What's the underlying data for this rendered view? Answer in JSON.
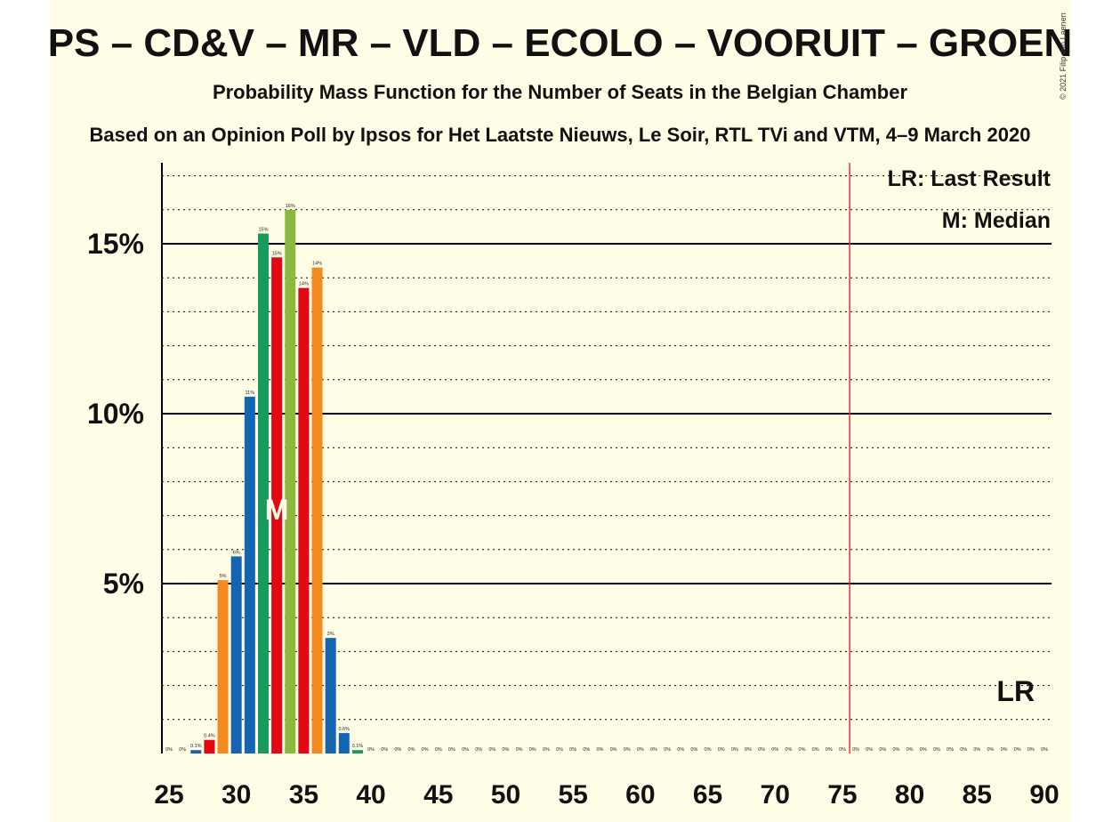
{
  "title": "PS – CD&V – MR – VLD – ECOLO – VOORUIT – GROEN",
  "subtitle": "Probability Mass Function for the Number of Seats in the Belgian Chamber",
  "source_line": "Based on an Opinion Poll by Ipsos for Het Laatste Nieuws, Le Soir, RTL TVi and VTM, 4–9 March 2020",
  "copyright": "© 2021 Filip van Laenen",
  "legend": {
    "lr": "LR: Last Result",
    "median": "M: Median"
  },
  "markers": {
    "lr_label": "LR",
    "median_label": "M"
  },
  "colors": {
    "background": "#fffde6",
    "threshold_line": "#e8333a",
    "grid": "#000000",
    "party_colors": [
      "#e30613",
      "#f28a1e",
      "#1464b4",
      "#179a5b",
      "#8cb83e"
    ]
  },
  "chart_data": {
    "type": "bar",
    "xlim": [
      25,
      90
    ],
    "ylim": [
      0,
      17.3
    ],
    "x_ticks": [
      25,
      30,
      35,
      40,
      45,
      50,
      55,
      60,
      65,
      70,
      75,
      80,
      85,
      90
    ],
    "y_ticks": [
      {
        "value": 5,
        "label": "5%"
      },
      {
        "value": 10,
        "label": "10%"
      },
      {
        "value": 15,
        "label": "15%"
      }
    ],
    "minor_gridlines_step": 1,
    "majority_threshold": 76,
    "median": 33,
    "last_result": 88,
    "bars": [
      {
        "x": 25,
        "value": 0,
        "label": "0%",
        "color": "#1464b4"
      },
      {
        "x": 26,
        "value": 0,
        "label": "0%",
        "color": "#1464b4"
      },
      {
        "x": 27,
        "value": 0.1,
        "label": "0.1%",
        "color": "#1464b4"
      },
      {
        "x": 28,
        "value": 0.4,
        "label": "0.4%",
        "color": "#e30613"
      },
      {
        "x": 29,
        "value": 5.1,
        "label": "5%",
        "color": "#f28a1e"
      },
      {
        "x": 30,
        "value": 5.8,
        "label": "6%",
        "color": "#1464b4"
      },
      {
        "x": 31,
        "value": 10.5,
        "label": "11%",
        "color": "#1464b4"
      },
      {
        "x": 32,
        "value": 15.3,
        "label": "15%",
        "color": "#179a5b"
      },
      {
        "x": 33,
        "value": 14.6,
        "label": "15%",
        "color": "#e30613"
      },
      {
        "x": 34,
        "value": 16.0,
        "label": "16%",
        "color": "#8cb83e"
      },
      {
        "x": 35,
        "value": 13.7,
        "label": "14%",
        "color": "#e30613"
      },
      {
        "x": 36,
        "value": 14.3,
        "label": "14%",
        "color": "#f28a1e"
      },
      {
        "x": 37,
        "value": 3.4,
        "label": "3%",
        "color": "#1464b4"
      },
      {
        "x": 38,
        "value": 0.6,
        "label": "0.6%",
        "color": "#1464b4"
      },
      {
        "x": 39,
        "value": 0.1,
        "label": "0.1%",
        "color": "#179a5b"
      },
      {
        "x": 40,
        "value": 0,
        "label": "0%",
        "color": "#1464b4"
      },
      {
        "x": 41,
        "value": 0,
        "label": "0%",
        "color": "#1464b4"
      },
      {
        "x": 42,
        "value": 0,
        "label": "0%",
        "color": "#1464b4"
      },
      {
        "x": 43,
        "value": 0,
        "label": "0%",
        "color": "#1464b4"
      },
      {
        "x": 44,
        "value": 0,
        "label": "0%",
        "color": "#1464b4"
      },
      {
        "x": 45,
        "value": 0,
        "label": "0%",
        "color": "#1464b4"
      },
      {
        "x": 46,
        "value": 0,
        "label": "0%",
        "color": "#1464b4"
      },
      {
        "x": 47,
        "value": 0,
        "label": "0%",
        "color": "#1464b4"
      },
      {
        "x": 48,
        "value": 0,
        "label": "0%",
        "color": "#1464b4"
      },
      {
        "x": 49,
        "value": 0,
        "label": "0%",
        "color": "#1464b4"
      },
      {
        "x": 50,
        "value": 0,
        "label": "0%",
        "color": "#1464b4"
      },
      {
        "x": 51,
        "value": 0,
        "label": "0%",
        "color": "#1464b4"
      },
      {
        "x": 52,
        "value": 0,
        "label": "0%",
        "color": "#1464b4"
      },
      {
        "x": 53,
        "value": 0,
        "label": "0%",
        "color": "#1464b4"
      },
      {
        "x": 54,
        "value": 0,
        "label": "0%",
        "color": "#1464b4"
      },
      {
        "x": 55,
        "value": 0,
        "label": "0%",
        "color": "#1464b4"
      },
      {
        "x": 56,
        "value": 0,
        "label": "0%",
        "color": "#1464b4"
      },
      {
        "x": 57,
        "value": 0,
        "label": "0%",
        "color": "#1464b4"
      },
      {
        "x": 58,
        "value": 0,
        "label": "0%",
        "color": "#1464b4"
      },
      {
        "x": 59,
        "value": 0,
        "label": "0%",
        "color": "#1464b4"
      },
      {
        "x": 60,
        "value": 0,
        "label": "0%",
        "color": "#1464b4"
      },
      {
        "x": 61,
        "value": 0,
        "label": "0%",
        "color": "#1464b4"
      },
      {
        "x": 62,
        "value": 0,
        "label": "0%",
        "color": "#1464b4"
      },
      {
        "x": 63,
        "value": 0,
        "label": "0%",
        "color": "#1464b4"
      },
      {
        "x": 64,
        "value": 0,
        "label": "0%",
        "color": "#1464b4"
      },
      {
        "x": 65,
        "value": 0,
        "label": "0%",
        "color": "#1464b4"
      },
      {
        "x": 66,
        "value": 0,
        "label": "0%",
        "color": "#1464b4"
      },
      {
        "x": 67,
        "value": 0,
        "label": "0%",
        "color": "#1464b4"
      },
      {
        "x": 68,
        "value": 0,
        "label": "0%",
        "color": "#1464b4"
      },
      {
        "x": 69,
        "value": 0,
        "label": "0%",
        "color": "#1464b4"
      },
      {
        "x": 70,
        "value": 0,
        "label": "0%",
        "color": "#1464b4"
      },
      {
        "x": 71,
        "value": 0,
        "label": "0%",
        "color": "#1464b4"
      },
      {
        "x": 72,
        "value": 0,
        "label": "0%",
        "color": "#1464b4"
      },
      {
        "x": 73,
        "value": 0,
        "label": "0%",
        "color": "#1464b4"
      },
      {
        "x": 74,
        "value": 0,
        "label": "0%",
        "color": "#1464b4"
      },
      {
        "x": 75,
        "value": 0,
        "label": "0%",
        "color": "#1464b4"
      },
      {
        "x": 76,
        "value": 0,
        "label": "0%",
        "color": "#1464b4"
      },
      {
        "x": 77,
        "value": 0,
        "label": "0%",
        "color": "#1464b4"
      },
      {
        "x": 78,
        "value": 0,
        "label": "0%",
        "color": "#1464b4"
      },
      {
        "x": 79,
        "value": 0,
        "label": "0%",
        "color": "#1464b4"
      },
      {
        "x": 80,
        "value": 0,
        "label": "0%",
        "color": "#1464b4"
      },
      {
        "x": 81,
        "value": 0,
        "label": "0%",
        "color": "#1464b4"
      },
      {
        "x": 82,
        "value": 0,
        "label": "0%",
        "color": "#1464b4"
      },
      {
        "x": 83,
        "value": 0,
        "label": "0%",
        "color": "#1464b4"
      },
      {
        "x": 84,
        "value": 0,
        "label": "0%",
        "color": "#1464b4"
      },
      {
        "x": 85,
        "value": 0,
        "label": "0%",
        "color": "#1464b4"
      },
      {
        "x": 86,
        "value": 0,
        "label": "0%",
        "color": "#1464b4"
      },
      {
        "x": 87,
        "value": 0,
        "label": "0%",
        "color": "#1464b4"
      },
      {
        "x": 88,
        "value": 0,
        "label": "0%",
        "color": "#1464b4"
      },
      {
        "x": 89,
        "value": 0,
        "label": "0%",
        "color": "#1464b4"
      },
      {
        "x": 90,
        "value": 0,
        "label": "0%",
        "color": "#1464b4"
      }
    ]
  }
}
